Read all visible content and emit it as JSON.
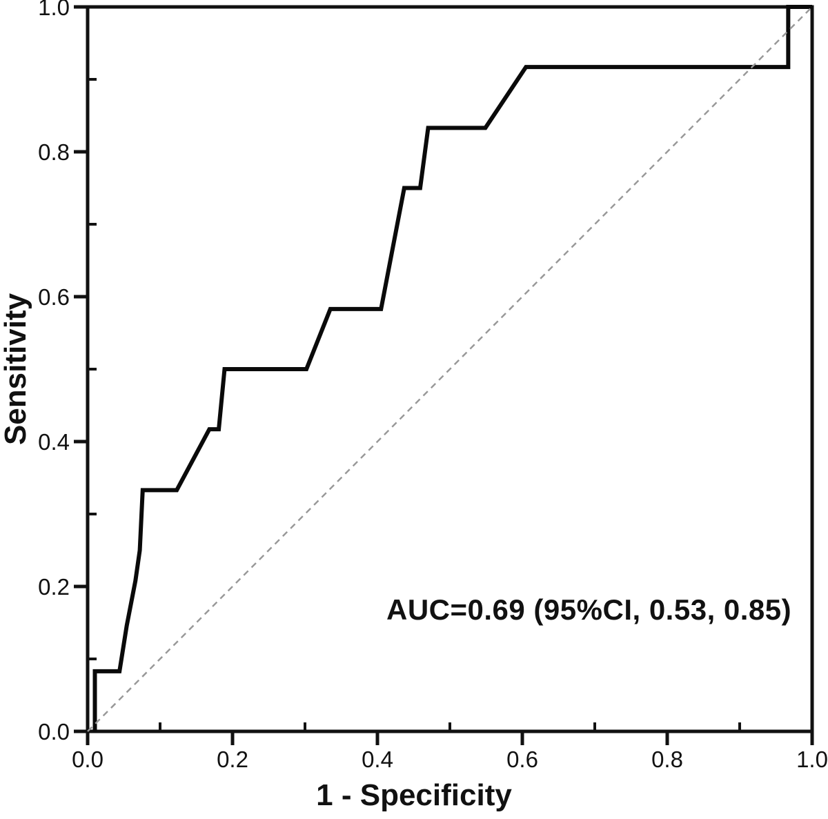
{
  "figure": {
    "background": "#ffffff",
    "frame_color": "#111111",
    "text_color": "#111111"
  },
  "chart_data": {
    "type": "line",
    "title": "",
    "xlabel": "1 - Specificity",
    "ylabel": "Sensitivity",
    "xlim": [
      0.0,
      1.0
    ],
    "ylim": [
      0.0,
      1.0
    ],
    "grid": false,
    "legend": "none",
    "x_major_ticks": [
      0.0,
      0.2,
      0.4,
      0.6,
      0.8,
      1.0
    ],
    "x_tick_labels": [
      "0.0",
      "0.2",
      "0.4",
      "0.6",
      "0.8",
      "1.0"
    ],
    "y_major_ticks": [
      0.0,
      0.2,
      0.4,
      0.6,
      0.8,
      1.0
    ],
    "y_tick_labels": [
      "0.0",
      "0.2",
      "0.4",
      "0.6",
      "0.8",
      "1.0"
    ],
    "x_minor_ticks": [
      0.1,
      0.3,
      0.5,
      0.7,
      0.9
    ],
    "y_minor_ticks": [
      0.1,
      0.3,
      0.5,
      0.7,
      0.9
    ],
    "annotation": {
      "text": "AUC=0.69 (95%CI, 0.53, 0.85)",
      "x": 0.62,
      "y": 0.17
    },
    "auc": {
      "value": 0.69,
      "ci_low": 0.53,
      "ci_high": 0.85
    },
    "series": [
      {
        "name": "roc-curve",
        "color": "#0a0a0a",
        "style": "solid",
        "width": 6,
        "points": [
          [
            0.01,
            0.0
          ],
          [
            0.01,
            0.083
          ],
          [
            0.044,
            0.083
          ],
          [
            0.054,
            0.146
          ],
          [
            0.066,
            0.208
          ],
          [
            0.072,
            0.25
          ],
          [
            0.076,
            0.333
          ],
          [
            0.123,
            0.333
          ],
          [
            0.168,
            0.417
          ],
          [
            0.181,
            0.417
          ],
          [
            0.189,
            0.5
          ],
          [
            0.302,
            0.5
          ],
          [
            0.335,
            0.583
          ],
          [
            0.405,
            0.583
          ],
          [
            0.437,
            0.75
          ],
          [
            0.459,
            0.75
          ],
          [
            0.47,
            0.833
          ],
          [
            0.549,
            0.833
          ],
          [
            0.605,
            0.917
          ],
          [
            0.967,
            0.917
          ],
          [
            0.967,
            1.0
          ],
          [
            1.0,
            1.0
          ]
        ]
      },
      {
        "name": "reference-diagonal",
        "color": "#999999",
        "style": "dashed",
        "width": 2.5,
        "points": [
          [
            0.0,
            0.0
          ],
          [
            1.0,
            1.0
          ]
        ]
      }
    ]
  }
}
